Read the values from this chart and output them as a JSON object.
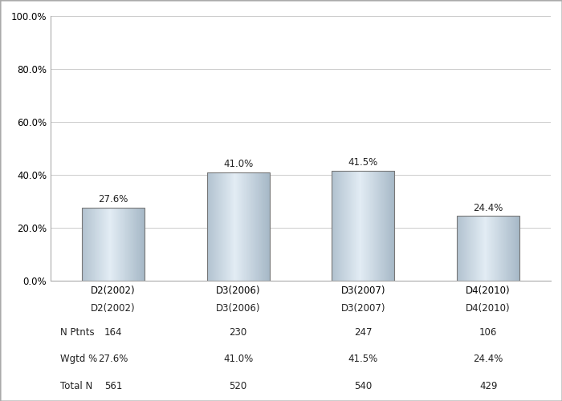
{
  "categories": [
    "D2(2002)",
    "D3(2006)",
    "D3(2007)",
    "D4(2010)"
  ],
  "values": [
    27.6,
    41.0,
    41.5,
    24.4
  ],
  "labels": [
    "27.6%",
    "41.0%",
    "41.5%",
    "24.4%"
  ],
  "n_ptnts": [
    "164",
    "230",
    "247",
    "106"
  ],
  "wgtd_pct": [
    "27.6%",
    "41.0%",
    "41.5%",
    "24.4%"
  ],
  "total_n": [
    "561",
    "520",
    "540",
    "429"
  ],
  "ylim": [
    0,
    100
  ],
  "yticks": [
    0,
    20,
    40,
    60,
    80,
    100
  ],
  "ytick_labels": [
    "0.0%",
    "20.0%",
    "40.0%",
    "60.0%",
    "80.0%",
    "100.0%"
  ],
  "background_color": "#ffffff",
  "grid_color": "#cccccc",
  "table_row_labels": [
    "N Ptnts",
    "Wgtd %",
    "Total N"
  ],
  "bar_width": 0.5,
  "font_size": 8.5
}
